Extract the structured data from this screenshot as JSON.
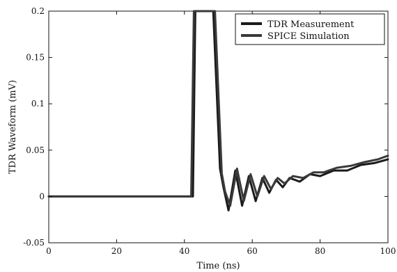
{
  "chart_data": {
    "type": "line",
    "title": "",
    "xlabel": "Time (ns)",
    "ylabel": "TDR Waveform (mV)",
    "xlim": [
      0,
      100
    ],
    "ylim": [
      -0.05,
      0.2
    ],
    "x_ticks": [
      0,
      20,
      40,
      60,
      80,
      100
    ],
    "x_tick_labels": [
      "0",
      "20",
      "40",
      "60",
      "80",
      "100"
    ],
    "y_ticks": [
      -0.05,
      0,
      0.05,
      0.1,
      0.15,
      0.2
    ],
    "y_tick_labels": [
      "-0.05",
      "0",
      "0.05",
      "0.1",
      "0.15",
      "0.2"
    ],
    "grid": false,
    "legend_position": "top-right",
    "series": [
      {
        "name": "TDR Measurement",
        "color": "#1a1a1a",
        "x": [
          0,
          42.5,
          43.2,
          44.2,
          47.5,
          48.5,
          50.5,
          51.5,
          53,
          55,
          57,
          59,
          61,
          63,
          65,
          67,
          69,
          71,
          74,
          77,
          80,
          84,
          88,
          92,
          96,
          100
        ],
        "y": [
          0,
          0,
          0.2,
          0.2,
          0.2,
          0.2,
          0.03,
          0.01,
          -0.015,
          0.028,
          -0.01,
          0.022,
          -0.005,
          0.02,
          0.004,
          0.018,
          0.01,
          0.02,
          0.016,
          0.024,
          0.022,
          0.028,
          0.028,
          0.034,
          0.036,
          0.04
        ]
      },
      {
        "name": "SPICE Simulation",
        "color": "#3a3a3a",
        "x": [
          0,
          42,
          42.8,
          44,
          48,
          49,
          51,
          52,
          53.5,
          55.5,
          57.5,
          59.5,
          61.5,
          63.5,
          65.5,
          67.5,
          69.5,
          72,
          75,
          78,
          81,
          85,
          89,
          93,
          97,
          100
        ],
        "y": [
          0,
          0,
          0.2,
          0.2,
          0.2,
          0.2,
          0.025,
          0.005,
          -0.01,
          0.03,
          -0.005,
          0.024,
          0.0,
          0.022,
          0.008,
          0.02,
          0.014,
          0.022,
          0.02,
          0.026,
          0.026,
          0.031,
          0.033,
          0.037,
          0.04,
          0.044
        ]
      }
    ]
  }
}
